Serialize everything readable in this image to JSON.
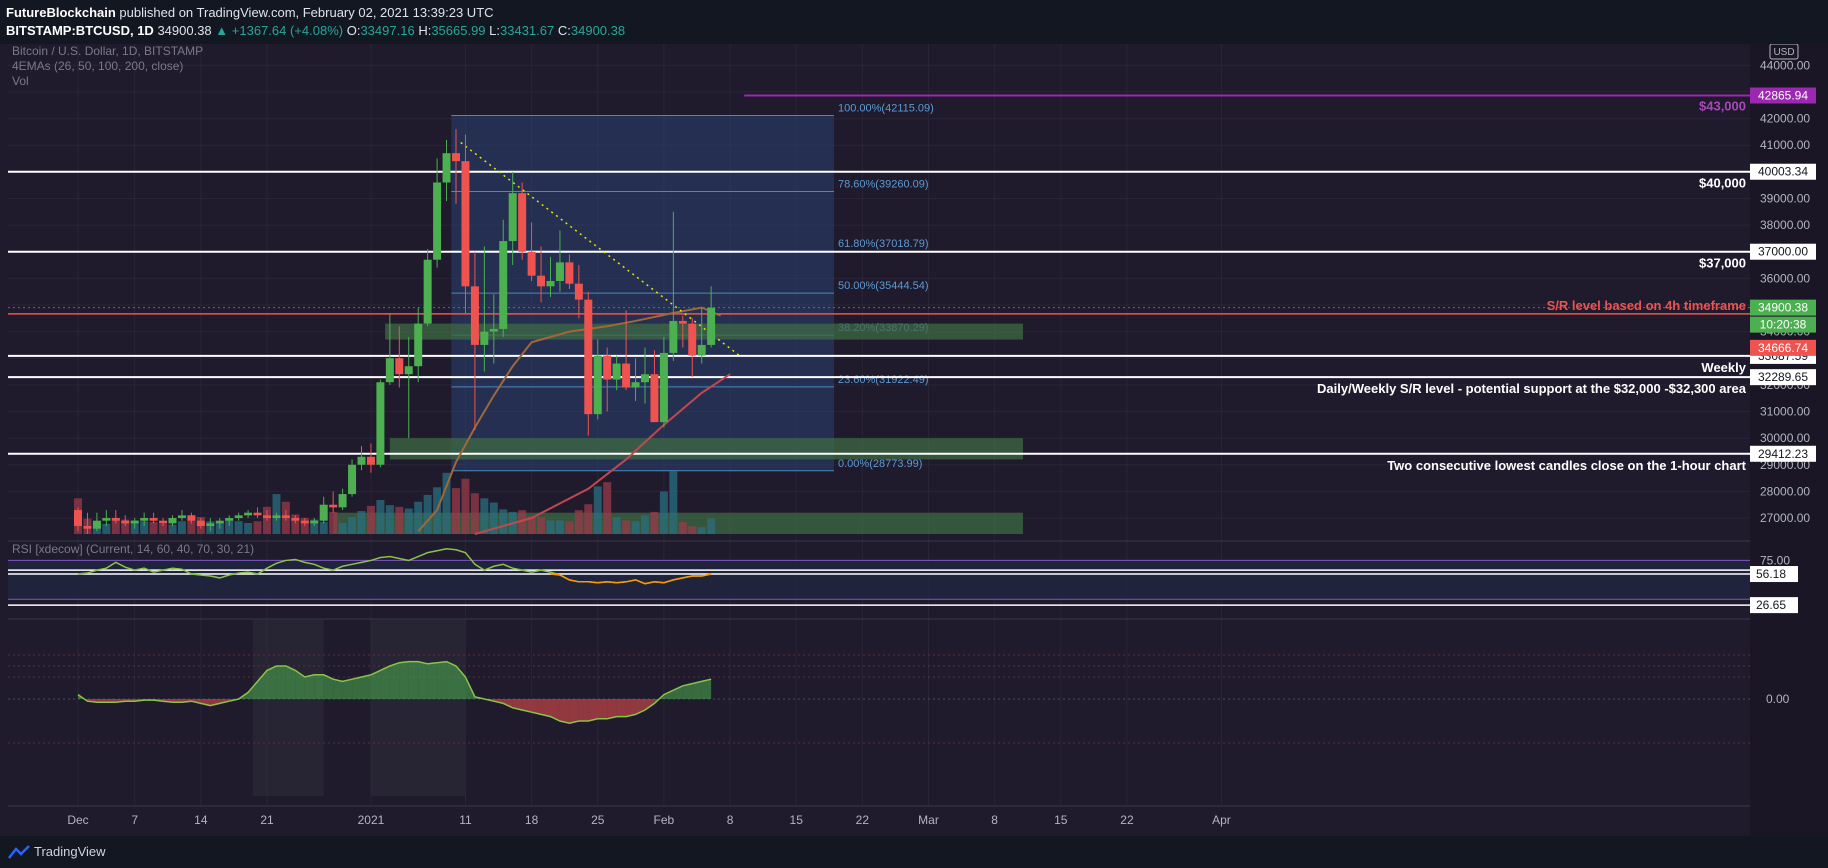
{
  "header": {
    "author": "FutureBlockchain",
    "published_text": "published on TradingView.com, February 02, 2021 13:39:23 UTC",
    "symbol": "BITSTAMP:BTCUSD, 1D",
    "last": "34900.38",
    "change": "▲ +1367.64 (+4.08%)",
    "o_label": "O:",
    "o": "33497.16",
    "h_label": "H:",
    "h": "35665.99",
    "l_label": "L:",
    "l": "33431.67",
    "c_label": "C:",
    "c": "34900.38"
  },
  "legend": {
    "title": "Bitcoin / U.S. Dollar, 1D, BITSTAMP",
    "ema": "4EMAs (26, 50, 100, 200, close)",
    "vol": "Vol",
    "rsi": "RSI [xdecow] (Current, 14, 60, 40, 70, 30, 21)"
  },
  "footer": {
    "brand": "TradingView"
  },
  "colors": {
    "up": "#4caf50",
    "down": "#ef5350",
    "background": "#1f1a2c",
    "fib": "#2a4a7f",
    "zone": "#3e6b43",
    "purple": "#9c27b0",
    "sr_red": "#ef5350"
  },
  "chart_data": {
    "type": "candlestick",
    "currency": "USD",
    "ylim": [
      26400,
      44800
    ],
    "yticks": [
      27000,
      28000,
      29000,
      30000,
      31000,
      32000,
      33000,
      34000,
      35000,
      36000,
      37000,
      38000,
      39000,
      40000,
      41000,
      42000,
      43000,
      44000
    ],
    "ytick_labels": [
      "27000.00",
      "28000.00",
      "29000.00",
      "30000.00",
      "31000.00",
      "32000.00",
      "33000.00",
      "34000.00",
      "35000.00",
      "36000.00",
      "37000.00",
      "38000.00",
      "39000.00",
      "40000.00",
      "41000.00",
      "42000.00",
      "43000.00",
      "44000.00"
    ],
    "xticks": [
      {
        "label": "Dec",
        "day": 0
      },
      {
        "label": "7",
        "day": 6
      },
      {
        "label": "14",
        "day": 13
      },
      {
        "label": "21",
        "day": 20
      },
      {
        "label": "2021",
        "day": 31
      },
      {
        "label": "11",
        "day": 41
      },
      {
        "label": "18",
        "day": 48
      },
      {
        "label": "25",
        "day": 55
      },
      {
        "label": "Feb",
        "day": 62
      },
      {
        "label": "8",
        "day": 69
      },
      {
        "label": "15",
        "day": 76
      },
      {
        "label": "22",
        "day": 83
      },
      {
        "label": "Mar",
        "day": 90
      },
      {
        "label": "8",
        "day": 97
      },
      {
        "label": "15",
        "day": 104
      },
      {
        "label": "22",
        "day": 111
      },
      {
        "label": "Apr",
        "day": 121
      }
    ],
    "candles": [
      [
        27300,
        27400,
        26500,
        26700
      ],
      [
        26700,
        27200,
        26400,
        26600
      ],
      [
        26600,
        27200,
        26500,
        26900
      ],
      [
        26900,
        27300,
        26700,
        27000
      ],
      [
        27000,
        27300,
        26800,
        26900
      ],
      [
        26900,
        27100,
        26700,
        26800
      ],
      [
        26800,
        27000,
        26600,
        26900
      ],
      [
        26900,
        27200,
        26700,
        27000
      ],
      [
        27000,
        27200,
        26800,
        26900
      ],
      [
        26900,
        27000,
        26700,
        26800
      ],
      [
        26800,
        27100,
        26700,
        27000
      ],
      [
        27000,
        27300,
        26900,
        27100
      ],
      [
        27100,
        27200,
        26800,
        26900
      ],
      [
        26900,
        27000,
        26600,
        26700
      ],
      [
        26700,
        27000,
        26500,
        26800
      ],
      [
        26800,
        27000,
        26600,
        26900
      ],
      [
        26900,
        27100,
        26700,
        27000
      ],
      [
        27000,
        27200,
        26900,
        27100
      ],
      [
        27100,
        27300,
        27000,
        27200
      ],
      [
        27200,
        27400,
        27000,
        27100
      ],
      [
        27100,
        27300,
        26900,
        27000
      ],
      [
        27000,
        27200,
        26900,
        27100
      ],
      [
        27100,
        27300,
        26900,
        27000
      ],
      [
        27000,
        27100,
        26800,
        26900
      ],
      [
        26900,
        27000,
        26700,
        26800
      ],
      [
        26800,
        27000,
        26700,
        26900
      ],
      [
        26900,
        27800,
        26800,
        27500
      ],
      [
        27500,
        28000,
        27200,
        27400
      ],
      [
        27400,
        28100,
        27300,
        27900
      ],
      [
        27900,
        29200,
        27800,
        29000
      ],
      [
        29000,
        29700,
        28800,
        29300
      ],
      [
        29300,
        29800,
        28700,
        29000
      ],
      [
        29000,
        32200,
        28900,
        32100
      ],
      [
        32100,
        34700,
        32000,
        33000
      ],
      [
        33000,
        34200,
        31900,
        32400
      ],
      [
        32400,
        33800,
        30000,
        32700
      ],
      [
        32700,
        34900,
        32100,
        34300
      ],
      [
        34300,
        37100,
        34200,
        36700
      ],
      [
        36700,
        40500,
        36400,
        39600
      ],
      [
        39600,
        41200,
        38900,
        40700
      ],
      [
        40700,
        41600,
        38800,
        40400
      ],
      [
        40400,
        41400,
        34700,
        35700
      ],
      [
        35700,
        37000,
        30300,
        33500
      ],
      [
        33500,
        37200,
        32500,
        34000
      ],
      [
        34000,
        35400,
        32800,
        34100
      ],
      [
        34100,
        38200,
        33800,
        37400
      ],
      [
        37400,
        40000,
        36500,
        39200
      ],
      [
        39200,
        39600,
        36700,
        37000
      ],
      [
        37000,
        38100,
        35900,
        36100
      ],
      [
        36100,
        37200,
        35100,
        35700
      ],
      [
        35700,
        36800,
        35300,
        35900
      ],
      [
        35900,
        37800,
        35500,
        36600
      ],
      [
        36600,
        36900,
        35600,
        35800
      ],
      [
        35800,
        36500,
        34500,
        35200
      ],
      [
        35200,
        35500,
        30100,
        30900
      ],
      [
        30900,
        33700,
        30700,
        33100
      ],
      [
        33100,
        33400,
        31000,
        32200
      ],
      [
        32200,
        33100,
        31800,
        32800
      ],
      [
        32800,
        34800,
        31800,
        31900
      ],
      [
        31900,
        33000,
        31400,
        32100
      ],
      [
        32100,
        33400,
        31300,
        32400
      ],
      [
        32400,
        33300,
        30700,
        30600
      ],
      [
        30600,
        33800,
        30400,
        33200
      ],
      [
        33200,
        38500,
        32900,
        34400
      ],
      [
        34400,
        34600,
        33400,
        34300
      ],
      [
        34300,
        34500,
        32300,
        33100
      ],
      [
        33100,
        34900,
        32800,
        33500
      ],
      [
        33500,
        35700,
        33400,
        34900
      ]
    ],
    "volume_rel": [
      0.42,
      0.18,
      0.14,
      0.12,
      0.19,
      0.17,
      0.16,
      0.15,
      0.14,
      0.12,
      0.11,
      0.15,
      0.22,
      0.2,
      0.15,
      0.14,
      0.18,
      0.15,
      0.13,
      0.15,
      0.32,
      0.47,
      0.38,
      0.23,
      0.19,
      0.17,
      0.14,
      0.26,
      0.13,
      0.2,
      0.27,
      0.33,
      0.4,
      0.34,
      0.32,
      0.3,
      0.38,
      0.46,
      0.55,
      0.72,
      0.54,
      0.65,
      0.48,
      0.42,
      0.37,
      0.29,
      0.26,
      0.28,
      0.21,
      0.2,
      0.16,
      0.16,
      0.15,
      0.28,
      0.35,
      0.56,
      0.61,
      0.2,
      0.16,
      0.15,
      0.22,
      0.26,
      0.5,
      0.74,
      0.14,
      0.09,
      0.08,
      0.18
    ],
    "fib_levels": [
      {
        "label": "100.00%(42115.09)",
        "price": 42115.09
      },
      {
        "label": "78.60%(39260.09)",
        "price": 39260.09
      },
      {
        "label": "61.80%(37018.79)",
        "price": 37018.79
      },
      {
        "label": "50.00%(35444.54)",
        "price": 35444.54
      },
      {
        "label": "38.20%(33870.29)",
        "price": 33870.29
      },
      {
        "label": "23.60%(31922.49)",
        "price": 31922.49
      },
      {
        "label": "0.00%(28773.99)",
        "price": 28773.99
      }
    ],
    "hlines": [
      {
        "price": 40003.34,
        "label": "$40,000",
        "tag": "40003.34"
      },
      {
        "price": 37000.0,
        "label": "$37,000",
        "tag": "37000.00"
      },
      {
        "price": 33087.59,
        "label": "Weekly",
        "tag": "33087.59"
      },
      {
        "price": 32289.65,
        "label": "Daily/Weekly S/R level - potential support at the $32,000 -$32,300 area",
        "tag": "32289.65"
      },
      {
        "price": 29412.23,
        "label": "Two consecutive lowest candles close on the 1-hour chart",
        "tag": "29412.23"
      }
    ],
    "purple_line": {
      "price": 42865.94,
      "label": "$43,000",
      "tag": "42865.94"
    },
    "red_line": {
      "price": 34666.74,
      "label": "S/R level based on 4h timeframe",
      "tag": "34666.74"
    },
    "current_price": {
      "price": 34900.38,
      "tag": "34900.38",
      "countdown": "10:20:38"
    },
    "zones": [
      {
        "top": 34300,
        "bottom": 33700
      },
      {
        "top": 30000,
        "bottom": 29200
      },
      {
        "top": 27200,
        "bottom": 26400
      }
    ],
    "trendline": {
      "from": [
        40.5,
        41100
      ],
      "to": [
        70,
        33100
      ]
    },
    "ema_short": [
      [
        36,
        26500
      ],
      [
        38,
        27300
      ],
      [
        40,
        29100
      ],
      [
        42,
        30400
      ],
      [
        44,
        31600
      ],
      [
        46,
        32700
      ],
      [
        48,
        33600
      ],
      [
        52,
        34000
      ],
      [
        56,
        34200
      ],
      [
        59,
        34400
      ],
      [
        63,
        34700
      ],
      [
        66,
        34900
      ],
      [
        68,
        34600
      ]
    ],
    "ema_long": [
      [
        42,
        26400
      ],
      [
        48,
        27000
      ],
      [
        54,
        28100
      ],
      [
        58,
        29200
      ],
      [
        62,
        30500
      ],
      [
        66,
        31700
      ],
      [
        69,
        32400
      ]
    ],
    "rsi": {
      "labels": [
        "75.00",
        "56.18",
        "26.65"
      ],
      "values": [
        56,
        57,
        60,
        62,
        68,
        63,
        60,
        62,
        58,
        60,
        62,
        61,
        56,
        55,
        54,
        52,
        55,
        57,
        58,
        56,
        62,
        67,
        70,
        71,
        68,
        66,
        62,
        60,
        64,
        66,
        68,
        70,
        73,
        74,
        72,
        70,
        74,
        78,
        80,
        82,
        81,
        78,
        66,
        60,
        64,
        66,
        62,
        60,
        58,
        60,
        58,
        55,
        50,
        48,
        48,
        47,
        48,
        47,
        48,
        50,
        46,
        48,
        47,
        50,
        52,
        54,
        54,
        56
      ]
    },
    "osc": {
      "label": "0.00",
      "values": [
        0.04,
        -0.02,
        -0.03,
        -0.03,
        -0.03,
        -0.02,
        -0.02,
        -0.01,
        -0.01,
        -0.02,
        -0.03,
        -0.03,
        -0.02,
        -0.04,
        -0.06,
        -0.04,
        -0.02,
        0.0,
        0.06,
        0.16,
        0.26,
        0.3,
        0.3,
        0.26,
        0.2,
        0.22,
        0.22,
        0.18,
        0.16,
        0.18,
        0.2,
        0.22,
        0.26,
        0.3,
        0.33,
        0.34,
        0.34,
        0.32,
        0.33,
        0.34,
        0.3,
        0.2,
        0.02,
        0.0,
        -0.02,
        -0.04,
        -0.08,
        -0.1,
        -0.12,
        -0.14,
        -0.16,
        -0.2,
        -0.22,
        -0.2,
        -0.2,
        -0.18,
        -0.18,
        -0.16,
        -0.16,
        -0.14,
        -0.1,
        -0.04,
        0.04,
        0.08,
        0.12,
        0.14,
        0.16,
        0.18
      ]
    }
  }
}
